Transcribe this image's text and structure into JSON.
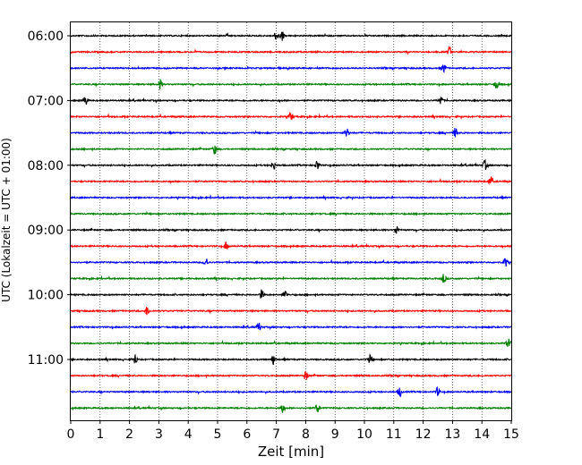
{
  "chart_data": {
    "type": "line",
    "description_kind": "helicorder",
    "xlabel": "Zeit  [min]",
    "ylabel": "UTC (Lokalzeit = UTC + 01:00)",
    "xlim": [
      0,
      15
    ],
    "x_ticks": [
      0,
      1,
      2,
      3,
      4,
      5,
      6,
      7,
      8,
      9,
      10,
      11,
      12,
      13,
      14,
      15
    ],
    "y_tick_labels": [
      "06:00",
      "07:00",
      "08:00",
      "09:00",
      "10:00",
      "11:00"
    ],
    "grid": "vertical dotted at each minute",
    "trace_interval_min": 15,
    "trace_colors": [
      "#000000",
      "#ff0000",
      "#0000ff",
      "#008000"
    ],
    "traces": [
      {
        "start": "06:00",
        "color": "#000000",
        "events_min": [
          7.0,
          7.2
        ]
      },
      {
        "start": "06:15",
        "color": "#ff0000",
        "events_min": [
          12.9
        ]
      },
      {
        "start": "06:30",
        "color": "#0000ff",
        "events_min": [
          12.7
        ]
      },
      {
        "start": "06:45",
        "color": "#008000",
        "events_min": [
          3.05,
          14.5
        ]
      },
      {
        "start": "07:00",
        "color": "#000000",
        "events_min": [
          0.5,
          12.6
        ]
      },
      {
        "start": "07:15",
        "color": "#ff0000",
        "events_min": [
          7.5
        ]
      },
      {
        "start": "07:30",
        "color": "#0000ff",
        "events_min": [
          9.4,
          13.1
        ]
      },
      {
        "start": "07:45",
        "color": "#008000",
        "events_min": [
          4.9
        ]
      },
      {
        "start": "08:00",
        "color": "#000000",
        "events_min": [
          6.9,
          8.4,
          14.1
        ]
      },
      {
        "start": "08:15",
        "color": "#ff0000",
        "events_min": [
          14.3
        ]
      },
      {
        "start": "08:30",
        "color": "#0000ff",
        "events_min": []
      },
      {
        "start": "08:45",
        "color": "#008000",
        "events_min": []
      },
      {
        "start": "09:00",
        "color": "#000000",
        "events_min": [
          11.1
        ]
      },
      {
        "start": "09:15",
        "color": "#ff0000",
        "events_min": [
          5.3
        ]
      },
      {
        "start": "09:30",
        "color": "#0000ff",
        "events_min": [
          4.6,
          14.8
        ]
      },
      {
        "start": "09:45",
        "color": "#008000",
        "events_min": [
          12.7
        ]
      },
      {
        "start": "10:00",
        "color": "#000000",
        "events_min": [
          6.5,
          7.3
        ]
      },
      {
        "start": "10:15",
        "color": "#ff0000",
        "events_min": [
          2.6
        ]
      },
      {
        "start": "10:30",
        "color": "#0000ff",
        "events_min": [
          6.4
        ]
      },
      {
        "start": "10:45",
        "color": "#008000",
        "events_min": [
          14.9
        ]
      },
      {
        "start": "11:00",
        "color": "#000000",
        "events_min": [
          2.2,
          6.9,
          10.2
        ]
      },
      {
        "start": "11:15",
        "color": "#ff0000",
        "events_min": [
          8.0
        ]
      },
      {
        "start": "11:30",
        "color": "#0000ff",
        "events_min": [
          11.2,
          12.5
        ]
      },
      {
        "start": "11:45",
        "color": "#008000",
        "events_min": [
          7.2,
          8.4
        ]
      }
    ]
  }
}
